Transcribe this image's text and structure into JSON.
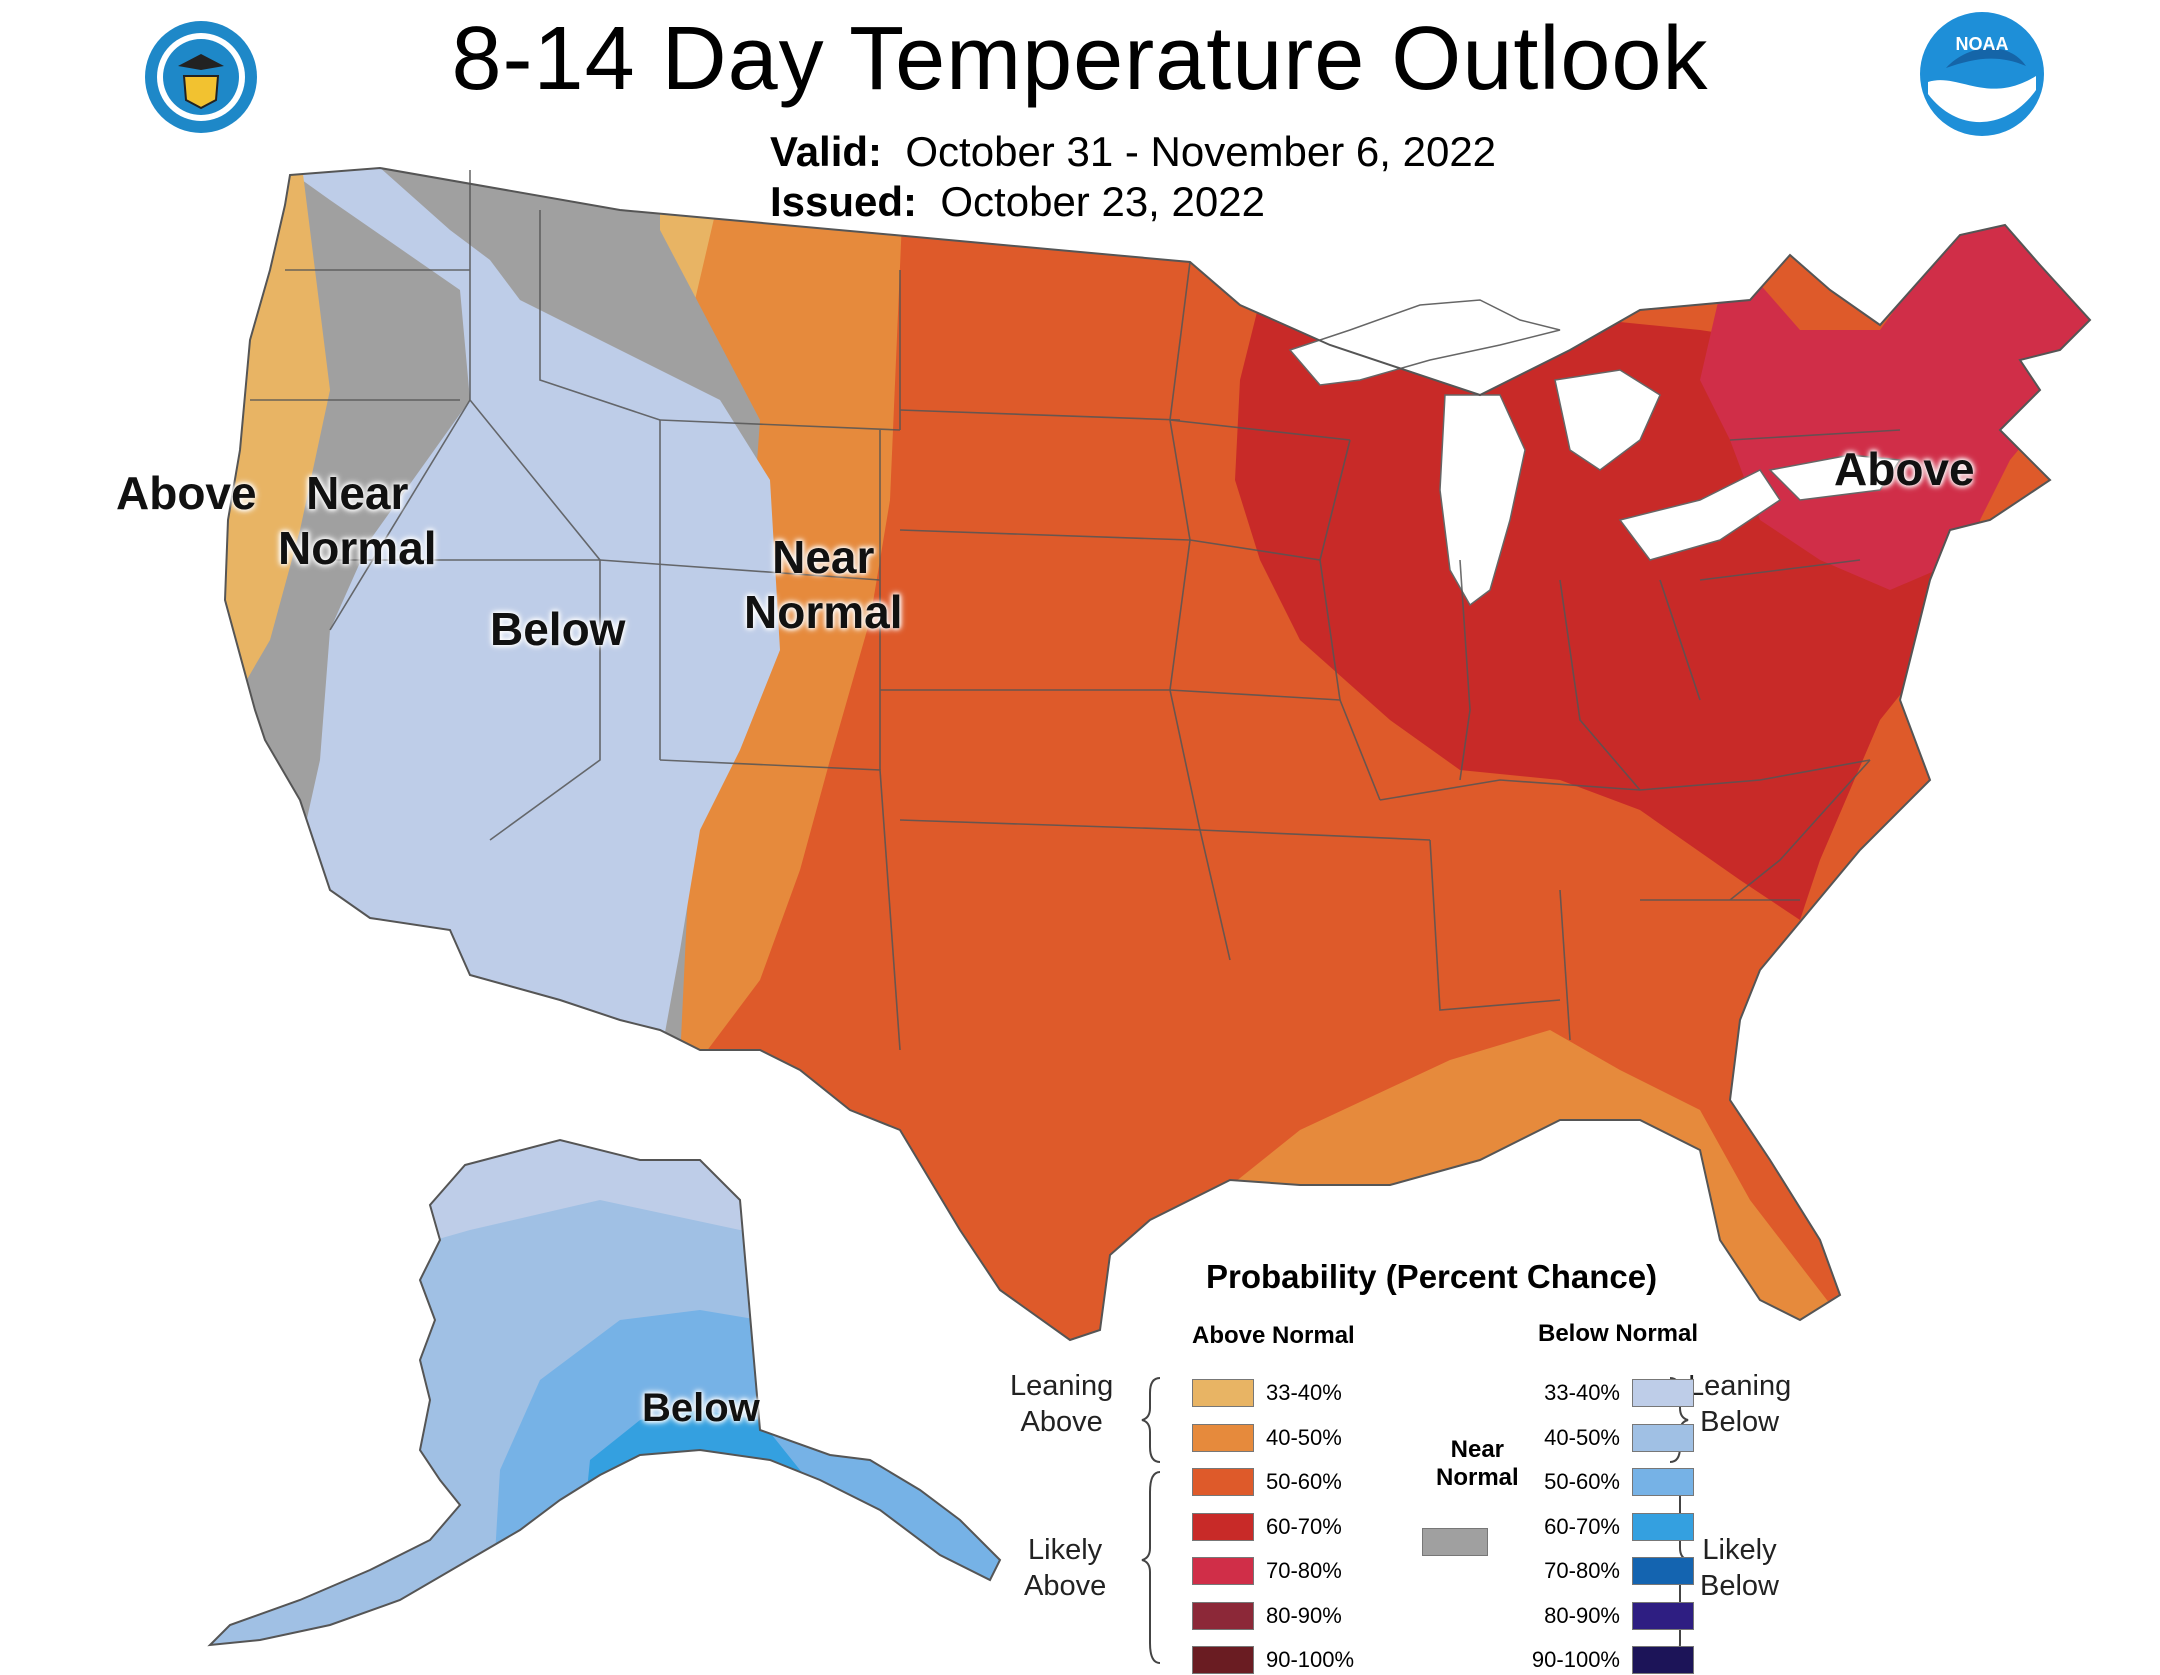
{
  "header": {
    "title": "8-14 Day Temperature Outlook",
    "valid_label": "Valid:",
    "valid_value": "October 31 - November 6, 2022",
    "issued_label": "Issued:",
    "issued_value": "October 23, 2022",
    "left_logo": "department-of-commerce-seal",
    "right_logo": "noaa-logo",
    "noaa_text": "NOAA"
  },
  "regions": {
    "pacific_coast": "Above",
    "west_near_normal_1": "Near",
    "west_near_normal_2": "Normal",
    "mountain_west": "Below",
    "plains_near_normal_1": "Near",
    "plains_near_normal_2": "Normal",
    "northeast": "Above",
    "alaska": "Below"
  },
  "legend": {
    "title": "Probability (Percent Chance)",
    "above_header": "Above Normal",
    "below_header": "Below Normal",
    "near_header_1": "Near",
    "near_header_2": "Normal",
    "leaning_above_1": "Leaning",
    "leaning_above_2": "Above",
    "likely_above_1": "Likely",
    "likely_above_2": "Above",
    "leaning_below_1": "Leaning",
    "leaning_below_2": "Below",
    "likely_below_1": "Likely",
    "likely_below_2": "Below",
    "above": [
      {
        "label": "33-40%",
        "color": "#E8B464"
      },
      {
        "label": "40-50%",
        "color": "#E68A3C"
      },
      {
        "label": "50-60%",
        "color": "#DE5A2A"
      },
      {
        "label": "60-70%",
        "color": "#C82A28"
      },
      {
        "label": "70-80%",
        "color": "#D02E48"
      },
      {
        "label": "80-90%",
        "color": "#8C2838"
      },
      {
        "label": "90-100%",
        "color": "#6A1C22"
      }
    ],
    "below": [
      {
        "label": "33-40%",
        "color": "#BECDE8"
      },
      {
        "label": "40-50%",
        "color": "#A0C0E4"
      },
      {
        "label": "50-60%",
        "color": "#76B2E6"
      },
      {
        "label": "60-70%",
        "color": "#34A0E0"
      },
      {
        "label": "70-80%",
        "color": "#1464B0"
      },
      {
        "label": "80-90%",
        "color": "#2E1E82"
      },
      {
        "label": "90-100%",
        "color": "#1C1458"
      }
    ],
    "near_color": "#A0A0A0"
  },
  "colors": {
    "near_normal": "#A0A0A0",
    "lean_above": "#E8B464",
    "above_40_50": "#E68A3C",
    "above_50_60": "#DE5A2A",
    "above_60_70": "#C82A28",
    "above_70_80": "#D02E48",
    "lean_below": "#BECDE8",
    "below_40_50": "#A0C0E4",
    "below_50_60": "#76B2E6",
    "below_60_70": "#34A0E0"
  }
}
